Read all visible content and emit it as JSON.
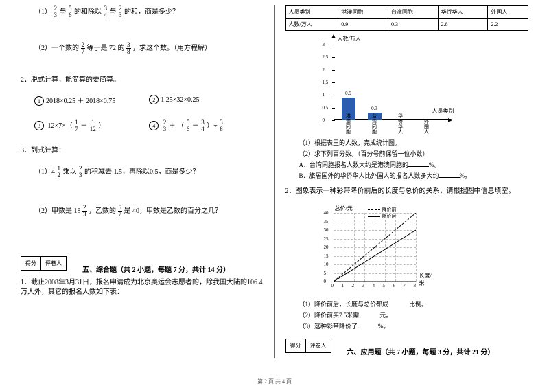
{
  "left": {
    "q1_1_pre": "（1）",
    "q1_1_a": "2",
    "q1_1_b": "3",
    "q1_1_mid1": "与",
    "q1_1_c": "5",
    "q1_1_d": "6",
    "q1_1_mid2": "的和除以",
    "q1_1_e": "3",
    "q1_1_f": "4",
    "q1_1_mid3": "与",
    "q1_1_g": "2",
    "q1_1_h": "3",
    "q1_1_end": "的和，商是多少？",
    "q1_2_pre": "（2）一个数的",
    "q1_2_a": "2",
    "q1_2_b": "7",
    "q1_2_mid1": "等于是 72 的",
    "q1_2_c": "3",
    "q1_2_d": "8",
    "q1_2_end": "，求这个数。（用方程解）",
    "sec2": "2．脱式计算，能简算的要简算。",
    "p2a": "2018×0.25 ＋ 2018×0.75",
    "p2b": "1.25×32×0.25",
    "p2c_pre": "12×7×（",
    "p2c_a": "1",
    "p2c_b": "7",
    "p2c_mid": "－",
    "p2c_c": "1",
    "p2c_d": "12",
    "p2c_end": "）",
    "p2d_a": "2",
    "p2d_b": "3",
    "p2d_mid1": " ＋ （ ",
    "p2d_c": "5",
    "p2d_d": "6",
    "p2d_mid2": " － ",
    "p2d_e": "3",
    "p2d_f": "4",
    "p2d_mid3": " ）÷",
    "p2d_g": "3",
    "p2d_h": "8",
    "sec3": "3．列式计算：",
    "q3_1_pre": "（1）4",
    "q3_1_a": "1",
    "q3_1_b": "2",
    "q3_1_mid": "乘以",
    "q3_1_c": "2",
    "q3_1_d": "3",
    "q3_1_end": "的积减去 1.5，再除以0.5，商是多少？",
    "q3_2_pre": "（2）甲数是 18",
    "q3_2_a": "2",
    "q3_2_b": "3",
    "q3_2_mid": "，乙数的",
    "q3_2_c": "5",
    "q3_2_d": "7",
    "q3_2_end": "是 40，甲数是乙数的百分之几？",
    "score1": "得分",
    "score2": "评卷人",
    "sec5": "五、综合题（共 2 小题，每题 7 分，共计 14 分）",
    "s5_q": "1．截止2008年3月31日，报名申请成为北京奥运会志愿者的，除我国大陆的106.4万人外，其它的报名人数如下表："
  },
  "right": {
    "th1": "人员类别",
    "th2": "港澳同胞",
    "th3": "台湾同胞",
    "th4": "华侨华人",
    "th5": "外国人",
    "tr1": "人数/万人",
    "td1": "0.9",
    "td2": "0.3",
    "td3": "2.8",
    "td4": "2.2",
    "chart": {
      "ytitle": "人数/万人",
      "xtitle": "人员类别",
      "yticks": [
        "0",
        "0.5",
        "1",
        "1.5",
        "2",
        "2.5",
        "3"
      ],
      "bars": [
        {
          "label": "港澳同胞",
          "val": 0.9,
          "txt": "0.9",
          "color": "#2a5db0"
        },
        {
          "label": "台湾同胞",
          "val": 0.3,
          "txt": "0.3",
          "color": "#2a5db0"
        },
        {
          "label": "华侨华人",
          "val": 0,
          "txt": "",
          "color": "#2a5db0"
        },
        {
          "label": "外国人",
          "val": 0,
          "txt": "",
          "color": "#2a5db0"
        }
      ],
      "ymax": 3
    },
    "s5_sub1": "（1）根据表里的人数，完成统计图。",
    "s5_sub2": "（2）求下列百分数。（百分号前保留一位小数）",
    "s5_a": "A．台湾同胞报名人数大约是港澳同胞的",
    "s5_a_end": "%。",
    "s5_b": "B．旅居国外的华侨华人比外国人的报名人数多大约",
    "s5_b_end": "%。",
    "s6": "2．图象表示一种彩带降价前后的长度与总价的关系，请根据图中信息填空。",
    "legend1": "降价前",
    "legend2": "降价后",
    "c2_ytitle": "总价/元",
    "c2_xtitle": "长度/米",
    "c2_y": [
      "0",
      "5",
      "10",
      "15",
      "20",
      "25",
      "30",
      "35",
      "40"
    ],
    "c2_x": [
      "0",
      "1",
      "2",
      "3",
      "4",
      "5",
      "6",
      "7",
      "8"
    ],
    "s6_1": "（1）降价前后，长度与总价都成",
    "s6_1_end": "比例。",
    "s6_2": "（2）降价前买7.5米需",
    "s6_2_end": "元。",
    "s6_3": "（3）这种彩带降价了",
    "s6_3_end": "%。",
    "score1": "得分",
    "score2": "评卷人",
    "sec6": "六、应用题（共 7 小题，每题 3 分，共计 21 分）"
  },
  "footer": "第 2 页 共 4 页",
  "circ": {
    "a": "1",
    "b": "2",
    "c": "3",
    "d": "4"
  }
}
